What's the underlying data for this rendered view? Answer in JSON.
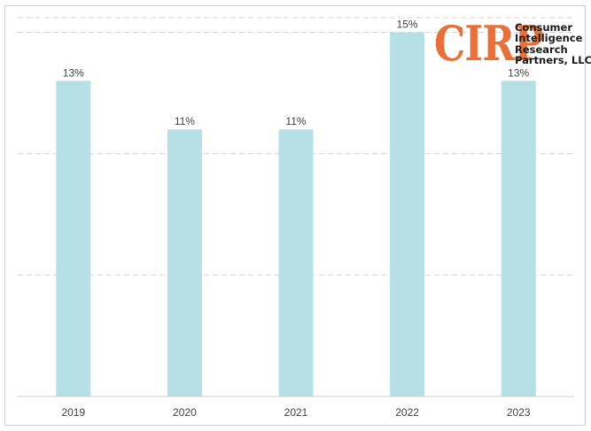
{
  "chart_data": {
    "type": "bar",
    "title": "",
    "xlabel": "",
    "ylabel": "",
    "categories": [
      "2019",
      "2020",
      "2021",
      "2022",
      "2023"
    ],
    "values": [
      13,
      11,
      11,
      15,
      13
    ],
    "data_labels": [
      "13%",
      "11%",
      "11%",
      "15%",
      "13%"
    ],
    "ylim": [
      0,
      15.6
    ],
    "grid": true,
    "bar_color": "#b7dfe6",
    "gridline_color": "#d4d4d4"
  },
  "logo": {
    "wordmark": "CIRP",
    "lines": [
      "Consumer",
      "Intelligence",
      "Research",
      "Partners, LLC"
    ],
    "color": "#e8703a"
  }
}
